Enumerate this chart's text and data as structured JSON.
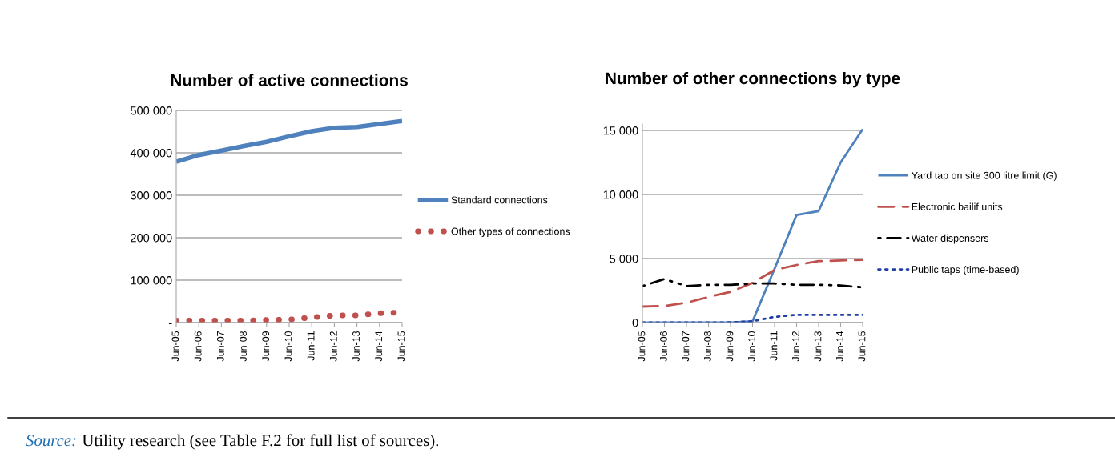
{
  "chart_data": [
    {
      "type": "line",
      "title": "Number of active connections",
      "categories": [
        "Jun-05",
        "Jun-06",
        "Jun-07",
        "Jun-08",
        "Jun-09",
        "Jun-10",
        "Jun-11",
        "Jun-12",
        "Jun-13",
        "Jun-14",
        "Jun-15"
      ],
      "series": [
        {
          "name": "Standard connections",
          "color": "#4f81bd",
          "line_style": "solid",
          "values": [
            379000,
            395000,
            405000,
            416000,
            426000,
            439000,
            451000,
            459000,
            461000,
            468000,
            475000
          ]
        },
        {
          "name": "Other types of connections",
          "color": "#c0504d",
          "line_style": "dotted",
          "values": [
            5000,
            5000,
            5000,
            5000,
            6000,
            7000,
            12000,
            17000,
            17000,
            22000,
            24000
          ]
        }
      ],
      "ylim": [
        0,
        500000
      ],
      "yticks": [
        {
          "value": 0,
          "label": "-"
        },
        {
          "value": 100000,
          "label": "100 000"
        },
        {
          "value": 200000,
          "label": "200 000"
        },
        {
          "value": 300000,
          "label": "300 000"
        },
        {
          "value": 400000,
          "label": "400 000"
        },
        {
          "value": 500000,
          "label": "500 000"
        }
      ],
      "grid": "y",
      "legend": "right",
      "marker": "none",
      "annotations": [
        "Source:",
        "Utility research (see Table F.2 for full list of sources)."
      ]
    },
    {
      "type": "line",
      "title": "Number of other connections by type",
      "categories": [
        "Jun-05",
        "Jun-06",
        "Jun-07",
        "Jun-08",
        "Jun-09",
        "Jun-10",
        "Jun-11",
        "Jun-12",
        "Jun-13",
        "Jun-14",
        "Jun-15"
      ],
      "series": [
        {
          "name": "Yard tap on site 300 litre limit (G)",
          "color": "#4f81bd",
          "line_style": "solid",
          "values": [
            0,
            0,
            0,
            0,
            0,
            100,
            4200,
            8400,
            8700,
            12500,
            15100
          ]
        },
        {
          "name": "Electronic bailif units",
          "color": "#c0504d",
          "line_style": "dashed",
          "values": [
            1250,
            1300,
            1550,
            2000,
            2400,
            3100,
            4100,
            4500,
            4800,
            4850,
            4900
          ]
        },
        {
          "name": "Water dispensers",
          "color": "#000000",
          "line_style": "dashdot",
          "values": [
            2850,
            3400,
            2850,
            2950,
            2950,
            3050,
            3050,
            2950,
            2950,
            2900,
            2750
          ]
        },
        {
          "name": "Public taps (time-based)",
          "color": "#1f3ea6",
          "line_style": "dotted",
          "values": [
            0,
            0,
            0,
            0,
            20,
            100,
            450,
            600,
            600,
            600,
            600
          ]
        }
      ],
      "ylim": [
        0,
        15500
      ],
      "yticks": [
        0,
        {
          "value": 5000,
          "label": "5 000"
        },
        {
          "value": 10000,
          "label": "10 000"
        },
        {
          "value": 15000,
          "label": "15 000"
        }
      ],
      "grid": "y",
      "legend": "right",
      "marker": "none"
    }
  ]
}
